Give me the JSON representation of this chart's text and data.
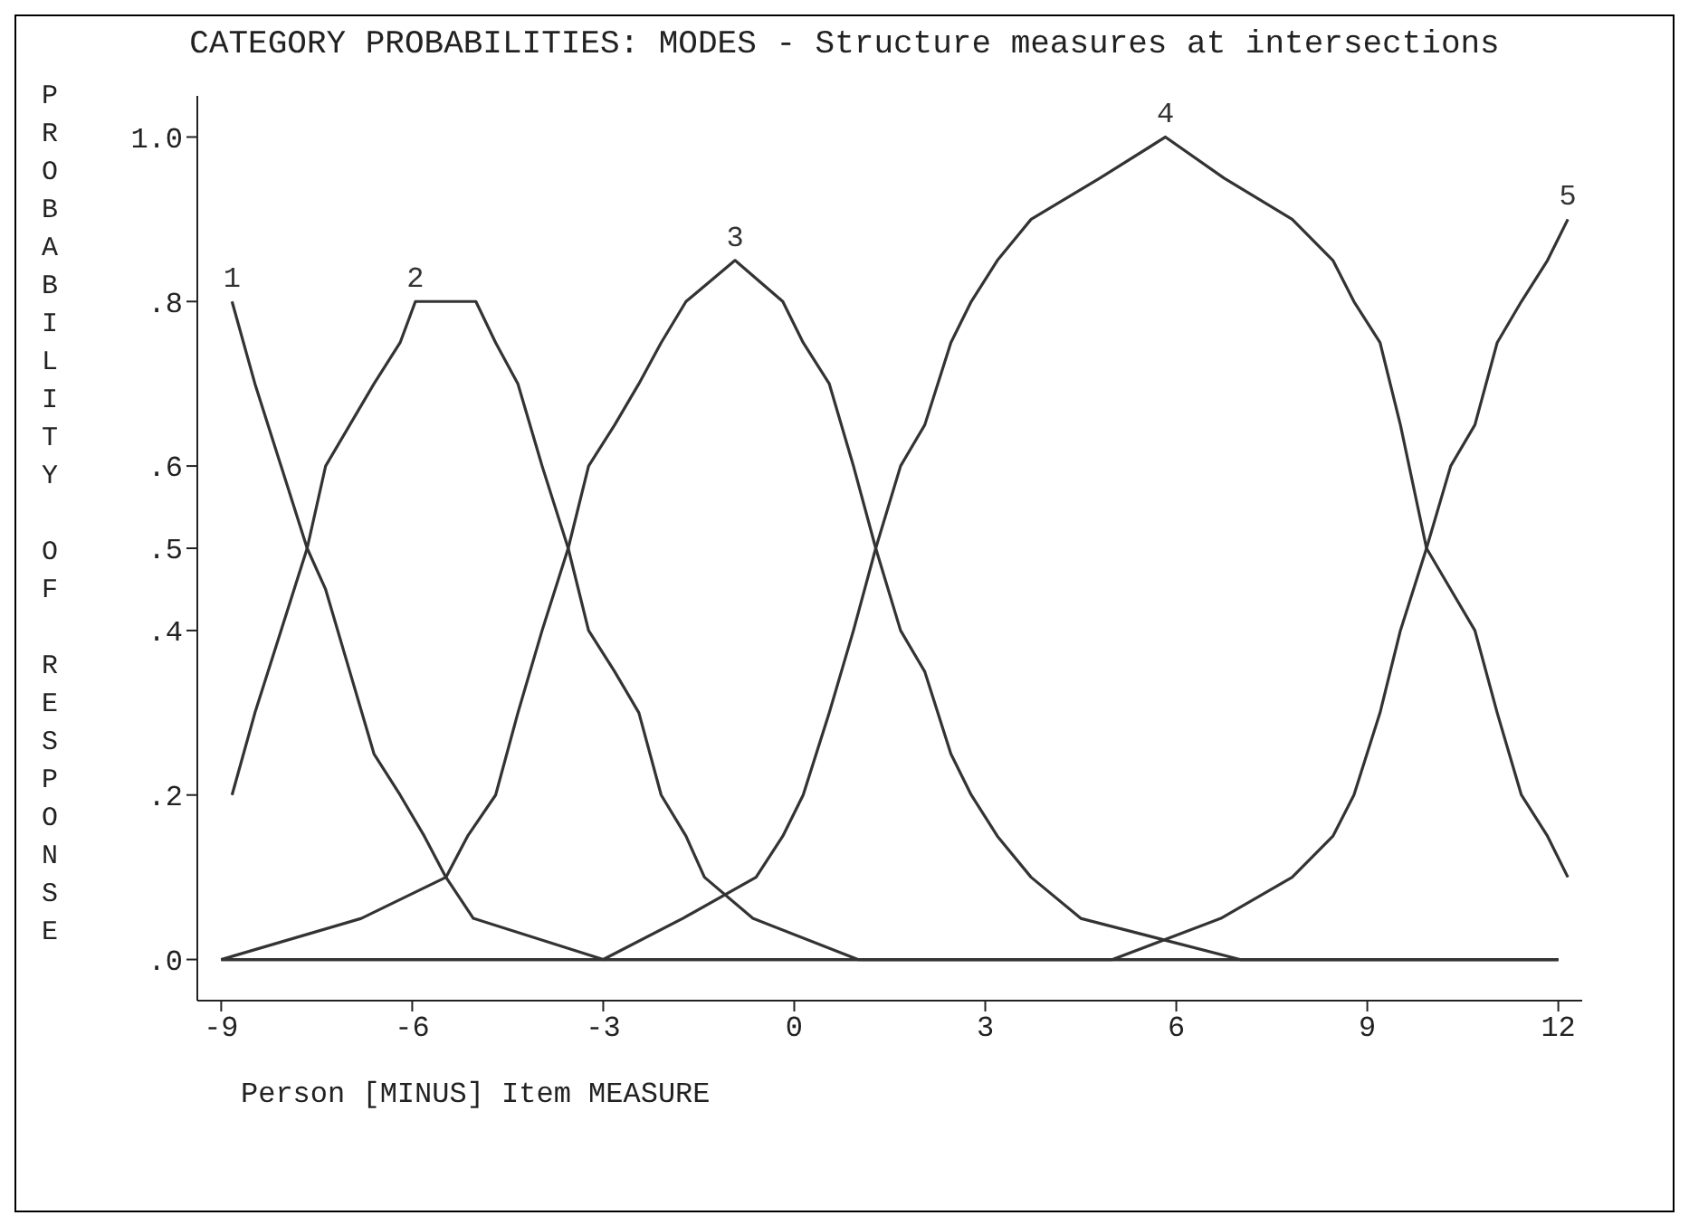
{
  "chart_data": {
    "type": "line",
    "title": "CATEGORY PROBABILITIES: MODES - Structure measures at intersections",
    "xlabel": "Person [MINUS] Item MEASURE",
    "ylabel": "PROBABILITY OF RESPONSE",
    "xlim": [
      -9.375,
      12.375
    ],
    "xticks": [
      -9,
      -6,
      -3,
      0,
      3,
      6,
      9,
      12
    ],
    "ylim": [
      -0.05,
      1.05
    ],
    "yticks": [
      {
        "value": 0,
        "label": ".0"
      },
      {
        "value": 0.2,
        "label": ".2"
      },
      {
        "value": 0.4,
        "label": ".4"
      },
      {
        "value": 0.5,
        "label": ".5"
      },
      {
        "value": 0.6,
        "label": ".6"
      },
      {
        "value": 0.8,
        "label": ".8"
      },
      {
        "value": 1.0,
        "label": "1.0"
      }
    ],
    "grid": false,
    "legend": false,
    "series": [
      {
        "name": "1",
        "color": "#333333",
        "x": [
          -8.83,
          -8.47,
          -8.06,
          -7.65,
          -7.36,
          -6.98,
          -6.6,
          -6.19,
          -5.81,
          -5.47,
          -5.04,
          -3,
          12
        ],
        "values": [
          0.8,
          0.7,
          0.6,
          0.5,
          0.45,
          0.35,
          0.25,
          0.2,
          0.15,
          0.1,
          0.05,
          0,
          0
        ]
      },
      {
        "name": "2",
        "color": "#333333",
        "x": [
          -8.83,
          -8.47,
          -8.06,
          -7.65,
          -7.36,
          -6.98,
          -6.6,
          -6.19,
          -5.95,
          -5.47,
          -5.0,
          -4.69,
          -4.34,
          -3.96,
          -3.55,
          -3.23,
          -2.82,
          -2.44,
          -2.09,
          -1.7,
          -1.41,
          -0.65,
          1,
          12
        ],
        "values": [
          0.2,
          0.3,
          0.4,
          0.5,
          0.6,
          0.65,
          0.7,
          0.75,
          0.8,
          0.8,
          0.8,
          0.75,
          0.7,
          0.6,
          0.5,
          0.4,
          0.35,
          0.3,
          0.2,
          0.15,
          0.1,
          0.05,
          0,
          0
        ]
      },
      {
        "name": "3",
        "color": "#333333",
        "x": [
          -9,
          -6.8,
          -5.47,
          -5.13,
          -4.69,
          -4.34,
          -3.96,
          -3.55,
          -3.23,
          -2.82,
          -2.44,
          -2.09,
          -1.7,
          -0.93,
          -0.18,
          0.14,
          0.55,
          0.93,
          1.28,
          1.67,
          2.05,
          2.46,
          2.78,
          3.19,
          3.72,
          4.5,
          7,
          12
        ],
        "values": [
          0,
          0.05,
          0.1,
          0.15,
          0.2,
          0.3,
          0.4,
          0.5,
          0.6,
          0.65,
          0.7,
          0.75,
          0.8,
          0.85,
          0.8,
          0.75,
          0.7,
          0.6,
          0.5,
          0.4,
          0.35,
          0.25,
          0.2,
          0.15,
          0.1,
          0.05,
          0,
          0
        ]
      },
      {
        "name": "4",
        "color": "#333333",
        "x": [
          -9,
          -3,
          -1.75,
          -0.6,
          -0.18,
          0.14,
          0.55,
          0.93,
          1.28,
          1.67,
          2.05,
          2.46,
          2.78,
          3.19,
          3.72,
          4.8,
          5.83,
          6.75,
          7.82,
          8.46,
          8.79,
          9.2,
          9.52,
          9.93,
          10.31,
          10.69,
          11.04,
          11.42,
          11.83,
          12.15
        ],
        "values": [
          0,
          0,
          0.05,
          0.1,
          0.15,
          0.2,
          0.3,
          0.4,
          0.5,
          0.6,
          0.65,
          0.75,
          0.8,
          0.85,
          0.9,
          0.95,
          1.0,
          0.95,
          0.9,
          0.85,
          0.8,
          0.75,
          0.65,
          0.5,
          0.45,
          0.4,
          0.3,
          0.2,
          0.15,
          0.1
        ]
      },
      {
        "name": "5",
        "color": "#333333",
        "x": [
          -9,
          5,
          6.7,
          7.82,
          8.46,
          8.79,
          9.2,
          9.52,
          9.93,
          10.31,
          10.69,
          11.04,
          11.42,
          11.83,
          12.15
        ],
        "values": [
          0,
          0,
          0.05,
          0.1,
          0.15,
          0.2,
          0.3,
          0.4,
          0.5,
          0.6,
          0.65,
          0.75,
          0.8,
          0.85,
          0.9
        ]
      }
    ]
  }
}
